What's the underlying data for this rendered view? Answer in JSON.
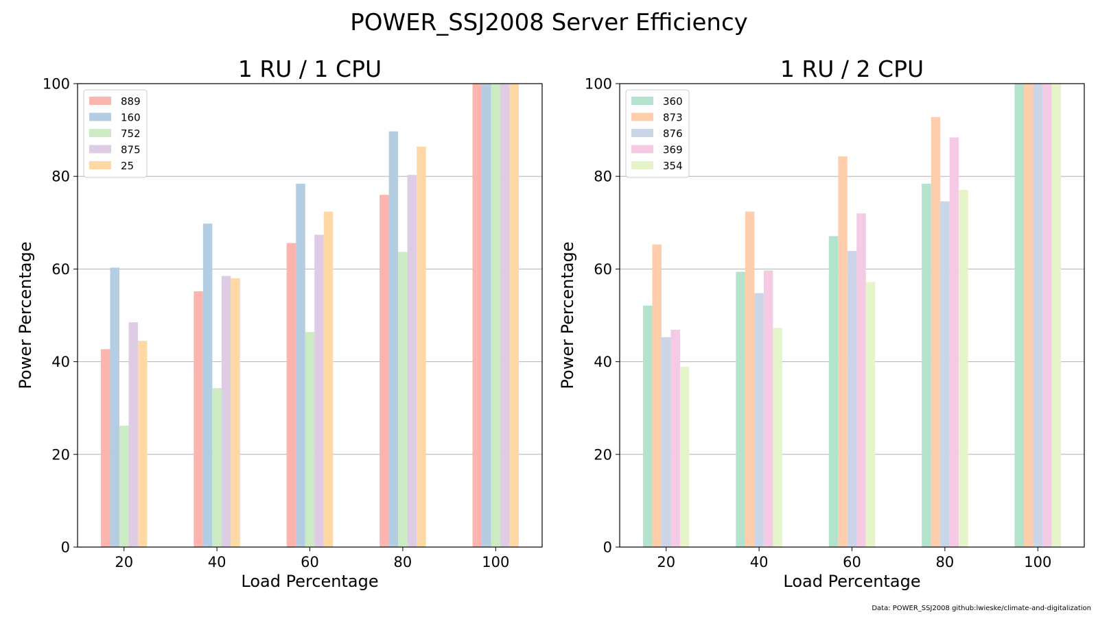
{
  "figure": {
    "title": "POWER_SSJ2008 Server Efficiency",
    "source_text": "Data: POWER_SSJ2008   github:lwieske/climate-and-digitalization"
  },
  "chart_data": [
    {
      "type": "bar",
      "title": "1 RU / 1 CPU",
      "xlabel": "Load Percentage",
      "ylabel": "Power Percentage",
      "categories": [
        "20",
        "40",
        "60",
        "80",
        "100"
      ],
      "ylim": [
        0,
        100
      ],
      "yticks": [
        "0",
        "20",
        "40",
        "60",
        "80",
        "100"
      ],
      "grid": "y",
      "legend_position": "top-left",
      "series": [
        {
          "name": "889",
          "color": "#fbb4ae",
          "values": [
            42.7,
            55.2,
            65.6,
            76.0,
            100
          ]
        },
        {
          "name": "160",
          "color": "#b3cde3",
          "values": [
            60.3,
            69.8,
            78.4,
            89.7,
            100
          ]
        },
        {
          "name": "752",
          "color": "#ccebc5",
          "values": [
            26.2,
            34.3,
            46.4,
            63.7,
            100
          ]
        },
        {
          "name": "875",
          "color": "#decbe4",
          "values": [
            48.5,
            58.5,
            67.4,
            80.3,
            100
          ]
        },
        {
          "name": "25",
          "color": "#fed9a6",
          "values": [
            44.5,
            58.0,
            72.4,
            86.4,
            100
          ]
        }
      ]
    },
    {
      "type": "bar",
      "title": "1 RU / 2 CPU",
      "xlabel": "Load Percentage",
      "ylabel": "Power Percentage",
      "categories": [
        "20",
        "40",
        "60",
        "80",
        "100"
      ],
      "ylim": [
        0,
        100
      ],
      "yticks": [
        "0",
        "20",
        "40",
        "60",
        "80",
        "100"
      ],
      "grid": "y",
      "legend_position": "top-left",
      "series": [
        {
          "name": "360",
          "color": "#b3e2cd",
          "values": [
            52.1,
            59.4,
            67.1,
            78.4,
            100
          ]
        },
        {
          "name": "873",
          "color": "#fdcdac",
          "values": [
            65.3,
            72.4,
            84.3,
            92.8,
            100
          ]
        },
        {
          "name": "876",
          "color": "#cbd5e8",
          "values": [
            45.3,
            54.8,
            63.9,
            74.6,
            100
          ]
        },
        {
          "name": "369",
          "color": "#f4cae4",
          "values": [
            46.9,
            59.7,
            72.0,
            88.4,
            100
          ]
        },
        {
          "name": "354",
          "color": "#e6f5c9",
          "values": [
            38.9,
            47.3,
            57.2,
            77.1,
            100
          ]
        }
      ]
    }
  ]
}
